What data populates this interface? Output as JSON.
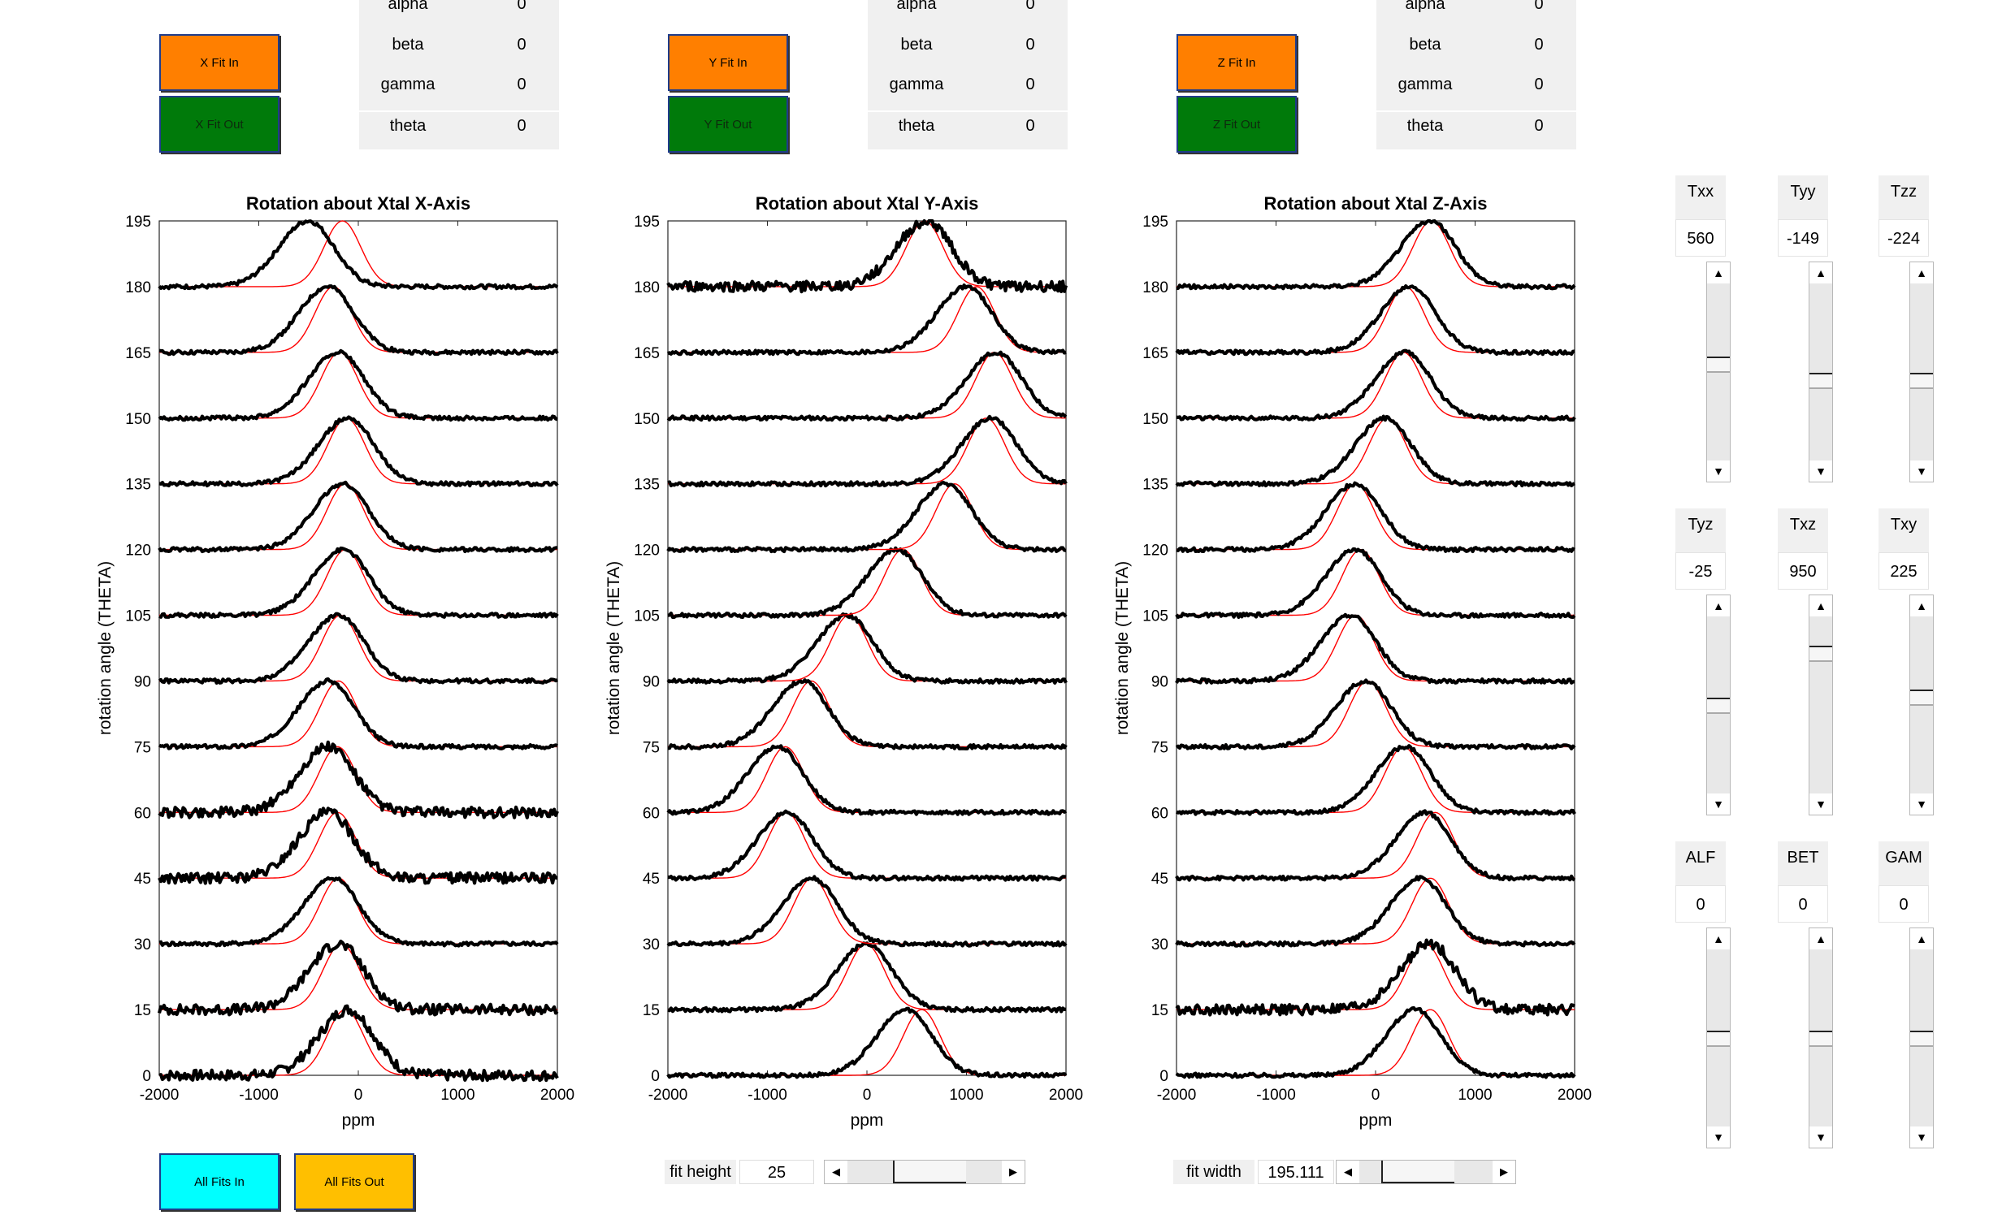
{
  "buttons": {
    "x_fit_in": "X Fit In",
    "x_fit_out": "X Fit Out",
    "y_fit_in": "Y Fit In",
    "y_fit_out": "Y Fit Out",
    "z_fit_in": "Z Fit In",
    "z_fit_out": "Z Fit Out",
    "all_fits_in": "All Fits In",
    "all_fits_out": "All Fits Out"
  },
  "params": [
    {
      "rows": [
        {
          "label": "alpha",
          "value": "0"
        },
        {
          "label": "beta",
          "value": "0"
        },
        {
          "label": "gamma",
          "value": "0"
        },
        {
          "label": "theta",
          "value": "0"
        }
      ]
    },
    {
      "rows": [
        {
          "label": "alpha",
          "value": "0"
        },
        {
          "label": "beta",
          "value": "0"
        },
        {
          "label": "gamma",
          "value": "0"
        },
        {
          "label": "theta",
          "value": "0"
        }
      ]
    },
    {
      "rows": [
        {
          "label": "alpha",
          "value": "0"
        },
        {
          "label": "beta",
          "value": "0"
        },
        {
          "label": "gamma",
          "value": "0"
        },
        {
          "label": "theta",
          "value": "0"
        }
      ]
    }
  ],
  "tensor": [
    {
      "label": "Txx",
      "value": "560",
      "slider_level": 0.55
    },
    {
      "label": "Tyy",
      "value": "-149",
      "slider_level": 0.45
    },
    {
      "label": "Tzz",
      "value": "-224",
      "slider_level": 0.45
    },
    {
      "label": "Tyz",
      "value": "-25",
      "slider_level": 0.5
    },
    {
      "label": "Txz",
      "value": "950",
      "slider_level": 0.82
    },
    {
      "label": "Txy",
      "value": "225",
      "slider_level": 0.55
    },
    {
      "label": "ALF",
      "value": "0",
      "slider_level": 0.5
    },
    {
      "label": "BET",
      "value": "0",
      "slider_level": 0.5
    },
    {
      "label": "GAM",
      "value": "0",
      "slider_level": 0.5
    }
  ],
  "controls": {
    "fit_height_label": "fit height",
    "fit_height_value": "25",
    "fit_height_level": 0.55,
    "fit_width_label": "fit width",
    "fit_width_value": "195.111",
    "fit_width_level": 0.35
  },
  "colors": {
    "fit_in": "#ff7f00",
    "fit_out": "#007a0a",
    "all_in": "#00ffff",
    "all_out": "#ffbf00",
    "fit_curve": "#ff0000",
    "data_curve": "#000000"
  },
  "chart_data": [
    {
      "type": "line",
      "title": "Rotation about Xtal X-Axis",
      "xlabel": "ppm",
      "ylabel": "rotation angle (THETA)",
      "xlim": [
        -2000,
        2000
      ],
      "ylim": [
        0,
        195
      ],
      "xticks": [
        "-2000",
        "-1000",
        "0",
        "1000",
        "2000"
      ],
      "yticks": [
        "0",
        "15",
        "30",
        "45",
        "60",
        "75",
        "90",
        "105",
        "120",
        "135",
        "150",
        "165",
        "180",
        "195"
      ],
      "angles": [
        0,
        15,
        30,
        45,
        60,
        75,
        90,
        105,
        120,
        135,
        150,
        165,
        180
      ],
      "data_peak_ppm": [
        -100,
        -200,
        -250,
        -300,
        -300,
        -300,
        -200,
        -150,
        -150,
        -100,
        -200,
        -300,
        -500
      ],
      "fit_peak_ppm": [
        -130,
        -170,
        -200,
        -210,
        -210,
        -200,
        -180,
        -130,
        -130,
        -120,
        -190,
        -250,
        -160
      ],
      "noise_at_angle": [
        0,
        15,
        45,
        60
      ]
    },
    {
      "type": "line",
      "title": "Rotation about Xtal Y-Axis",
      "xlabel": "ppm",
      "ylabel": "rotation angle (THETA)",
      "xlim": [
        -2000,
        2000
      ],
      "ylim": [
        0,
        195
      ],
      "xticks": [
        "-2000",
        "-1000",
        "0",
        "1000",
        "2000"
      ],
      "yticks": [
        "0",
        "15",
        "30",
        "45",
        "60",
        "75",
        "90",
        "105",
        "120",
        "135",
        "150",
        "165",
        "180",
        "195"
      ],
      "angles": [
        0,
        15,
        30,
        45,
        60,
        75,
        90,
        105,
        120,
        135,
        150,
        165,
        180
      ],
      "data_peak_ppm": [
        400,
        0,
        -550,
        -800,
        -900,
        -650,
        -200,
        300,
        800,
        1250,
        1300,
        1000,
        600
      ],
      "fit_peak_ppm": [
        550,
        -10,
        -550,
        -810,
        -820,
        -560,
        -180,
        360,
        880,
        1200,
        1280,
        1100,
        580
      ],
      "noise_at_angle": [
        180
      ]
    },
    {
      "type": "line",
      "title": "Rotation about Xtal Z-Axis",
      "xlabel": "ppm",
      "ylabel": "rotation angle (THETA)",
      "xlim": [
        -2000,
        2000
      ],
      "ylim": [
        0,
        195
      ],
      "xticks": [
        "-2000",
        "-1000",
        "0",
        "1000",
        "2000"
      ],
      "yticks": [
        "0",
        "15",
        "30",
        "45",
        "60",
        "75",
        "90",
        "105",
        "120",
        "135",
        "150",
        "165",
        "180",
        "195"
      ],
      "angles": [
        0,
        15,
        30,
        45,
        60,
        75,
        90,
        105,
        120,
        135,
        150,
        165,
        180
      ],
      "data_peak_ppm": [
        400,
        550,
        450,
        500,
        300,
        -100,
        -250,
        -200,
        -200,
        100,
        300,
        350,
        550
      ],
      "fit_peak_ppm": [
        550,
        500,
        550,
        600,
        280,
        -80,
        -200,
        -150,
        -200,
        120,
        280,
        300,
        560
      ],
      "noise_at_angle": [
        15
      ]
    }
  ]
}
